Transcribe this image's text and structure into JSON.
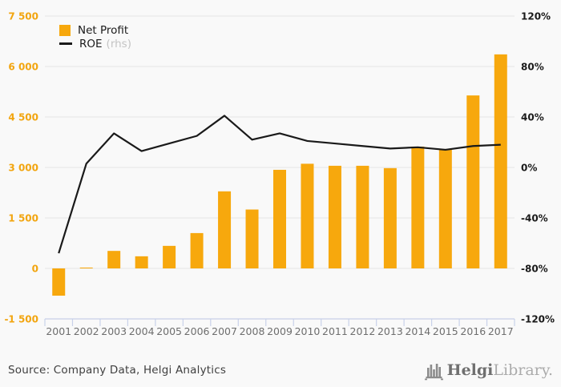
{
  "chart_data": {
    "type": "bar",
    "title": "",
    "categories": [
      "2001",
      "2002",
      "2003",
      "2004",
      "2005",
      "2006",
      "2007",
      "2008",
      "2009",
      "2010",
      "2011",
      "2012",
      "2013",
      "2014",
      "2015",
      "2016",
      "2017"
    ],
    "series": [
      {
        "name": "Net Profit",
        "type": "bar",
        "axis": "left",
        "values": [
          -810,
          25,
          520,
          360,
          670,
          1050,
          2290,
          1750,
          2930,
          3110,
          3050,
          3050,
          2980,
          3620,
          3550,
          5140,
          6360
        ]
      },
      {
        "name": "ROE",
        "type": "line",
        "axis": "right",
        "values": [
          -68,
          3,
          27,
          13,
          19,
          25,
          41,
          22,
          27,
          21,
          19,
          17,
          15,
          16,
          14,
          17,
          18
        ]
      }
    ],
    "left_axis": {
      "min": -1500,
      "max": 7500,
      "tick_step": 1500,
      "tick_labels": [
        "7 500",
        "6 000",
        "4 500",
        "3 000",
        "1 500",
        "0",
        "-1 500"
      ]
    },
    "right_axis": {
      "min": -120,
      "max": 120,
      "tick_step": 40,
      "unit": "%",
      "tick_labels": [
        "120%",
        "80%",
        "40%",
        "0%",
        "-40%",
        "-80%",
        "-120%"
      ]
    },
    "legend": [
      {
        "label": "Net Profit",
        "swatch": "square"
      },
      {
        "label": "ROE",
        "suffix": "(rhs)",
        "swatch": "line"
      }
    ],
    "grid": true,
    "legend_position": "top-left"
  },
  "footer": {
    "source": "Source: Company Data, Helgi Analytics",
    "logo": {
      "brand_bold": "Helgi",
      "brand_light": "Library."
    }
  },
  "colors": {
    "accent_orange": "#F7A80D",
    "roe_line": "#1A1A1A",
    "gridline": "#E9E9E9",
    "axis_line": "#C9D2EA",
    "left_tick_label": "#F2A50F",
    "right_tick_label": "#1A1A1A",
    "year_label": "#6E6E6E",
    "legend_muted": "#C4C4C4",
    "background": "#F9F9F9",
    "logo_icon": "#8C8C8C"
  }
}
